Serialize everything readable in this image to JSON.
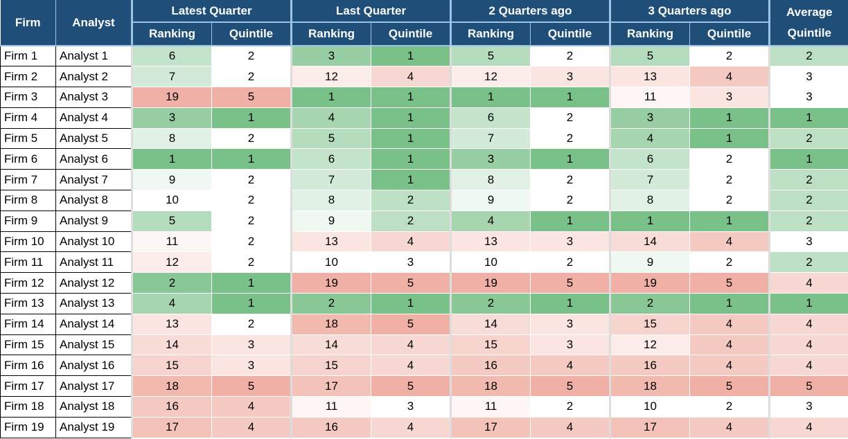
{
  "header": {
    "firm": "Firm",
    "analyst": "Analyst",
    "groups": [
      "Latest Quarter",
      "Last Quarter",
      "2 Quarters ago",
      "3 Quarters ago"
    ],
    "subheaders": [
      "Ranking",
      "Quintile",
      "Ranking",
      "Quintile",
      "Ranking",
      "Quintile",
      "Ranking",
      "Quintile"
    ],
    "average": "Average Quintile"
  },
  "rows": [
    [
      "Firm 1",
      "Analyst 1",
      6,
      2,
      3,
      1,
      5,
      2,
      5,
      2,
      2
    ],
    [
      "Firm 2",
      "Analyst 2",
      7,
      2,
      12,
      4,
      12,
      3,
      13,
      4,
      3
    ],
    [
      "Firm 3",
      "Analyst 3",
      19,
      5,
      1,
      1,
      1,
      1,
      11,
      3,
      3
    ],
    [
      "Firm 4",
      "Analyst 4",
      3,
      1,
      4,
      1,
      6,
      2,
      3,
      1,
      1
    ],
    [
      "Firm 5",
      "Analyst 5",
      8,
      2,
      5,
      1,
      7,
      2,
      4,
      1,
      2
    ],
    [
      "Firm 6",
      "Analyst 6",
      1,
      1,
      6,
      1,
      3,
      1,
      6,
      2,
      1
    ],
    [
      "Firm 7",
      "Analyst 7",
      9,
      2,
      7,
      1,
      8,
      2,
      7,
      2,
      2
    ],
    [
      "Firm 8",
      "Analyst 8",
      10,
      2,
      8,
      2,
      9,
      2,
      8,
      2,
      2
    ],
    [
      "Firm 9",
      "Analyst 9",
      5,
      2,
      9,
      2,
      4,
      1,
      1,
      1,
      2
    ],
    [
      "Firm 10",
      "Analyst 10",
      11,
      2,
      13,
      4,
      13,
      3,
      14,
      4,
      3
    ],
    [
      "Firm 11",
      "Analyst 11",
      12,
      2,
      10,
      3,
      10,
      2,
      9,
      2,
      2
    ],
    [
      "Firm 12",
      "Analyst 12",
      2,
      1,
      19,
      5,
      19,
      5,
      19,
      5,
      4
    ],
    [
      "Firm 13",
      "Analyst 13",
      4,
      1,
      2,
      1,
      2,
      1,
      2,
      1,
      1
    ],
    [
      "Firm 14",
      "Analyst 14",
      13,
      2,
      18,
      5,
      14,
      3,
      15,
      4,
      4
    ],
    [
      "Firm 15",
      "Analyst 15",
      14,
      3,
      14,
      4,
      15,
      3,
      12,
      4,
      4
    ],
    [
      "Firm 16",
      "Analyst 16",
      15,
      3,
      15,
      4,
      16,
      4,
      16,
      4,
      4
    ],
    [
      "Firm 17",
      "Analyst 17",
      18,
      5,
      17,
      5,
      18,
      5,
      18,
      5,
      5
    ],
    [
      "Firm 18",
      "Analyst 18",
      16,
      4,
      11,
      3,
      11,
      2,
      10,
      2,
      3
    ],
    [
      "Firm 19",
      "Analyst 19",
      17,
      4,
      16,
      4,
      17,
      4,
      17,
      4,
      4
    ]
  ]
}
